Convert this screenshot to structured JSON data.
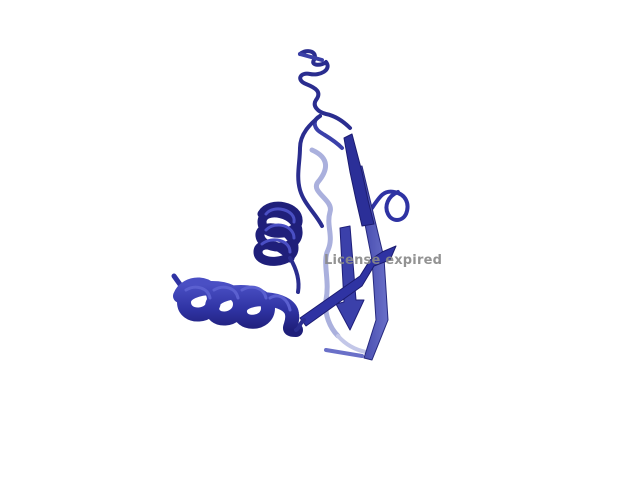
{
  "viewer": {
    "background_color": "#ffffff",
    "watermark_text": "License expired",
    "watermark_color": "#8a8a8a"
  },
  "structure": {
    "representation": "cartoon",
    "palette": {
      "helix_dark": "#1f1f7a",
      "helix_mid": "#2f33a3",
      "helix_light": "#4a4fc4",
      "strand_dark": "#3a3fa6",
      "strand_light": "#6a70c8",
      "loop_dark": "#2a2d8f",
      "loop_light": "#aab0dd"
    },
    "elements": [
      "helix-upper",
      "helix-lower",
      "beta-sheet",
      "n-terminal-loop",
      "hairpin-loop",
      "back-loop"
    ]
  }
}
